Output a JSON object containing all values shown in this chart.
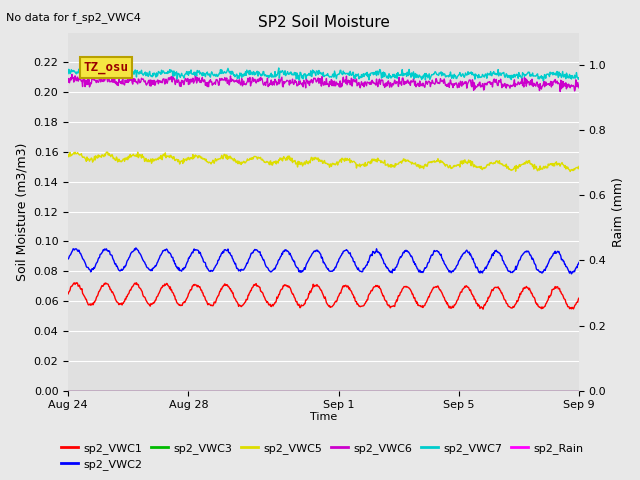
{
  "title": "SP2 Soil Moisture",
  "subtitle": "No data for f_sp2_VWC4",
  "xlabel": "Time",
  "ylabel_left": "Soil Moisture (m3/m3)",
  "ylabel_right": "Raim (mm)",
  "tz_label": "TZ_osu",
  "ylim_left": [
    0.0,
    0.24
  ],
  "ylim_right": [
    0.0,
    1.1
  ],
  "yticks_left": [
    0.0,
    0.02,
    0.04,
    0.06,
    0.08,
    0.1,
    0.12,
    0.14,
    0.16,
    0.18,
    0.2,
    0.22
  ],
  "yticks_right": [
    0.0,
    0.2,
    0.4,
    0.6,
    0.8,
    1.0
  ],
  "xtick_labels": [
    "Aug 24",
    "Aug 28",
    "Sep 1",
    "Sep 5",
    "Sep 9"
  ],
  "xtick_positions": [
    0,
    4,
    9,
    13,
    17
  ],
  "series": {
    "sp2_VWC1": {
      "color": "#ff0000",
      "base": 0.065,
      "amplitude": 0.007,
      "period": 1.0,
      "trend": -0.003,
      "noise": 0.0005
    },
    "sp2_VWC2": {
      "color": "#0000ff",
      "base": 0.088,
      "amplitude": 0.007,
      "period": 1.0,
      "trend": -0.002,
      "noise": 0.0005
    },
    "sp2_VWC3": {
      "color": "#00bb00",
      "base": 0.0,
      "amplitude": 0.0,
      "period": 1.0,
      "trend": 0.0,
      "noise": 0.0
    },
    "sp2_VWC5": {
      "color": "#dddd00",
      "base": 0.157,
      "amplitude": 0.002,
      "period": 1.0,
      "trend": -0.007,
      "noise": 0.0008
    },
    "sp2_VWC6": {
      "color": "#cc00cc",
      "base": 0.208,
      "amplitude": 0.001,
      "period": 1.0,
      "trend": -0.003,
      "noise": 0.0015
    },
    "sp2_VWC7": {
      "color": "#00cccc",
      "base": 0.213,
      "amplitude": 0.001,
      "period": 1.0,
      "trend": -0.002,
      "noise": 0.0012
    },
    "sp2_Rain": {
      "color": "#ff00ff",
      "base": 0.0,
      "amplitude": 0.0,
      "period": 1.0,
      "trend": 0.0,
      "noise": 0.0
    }
  },
  "background_color": "#e8e8e8",
  "plot_bg_color": "#e0e0e0",
  "grid_color": "#ffffff",
  "linewidth": 1.0,
  "n_days": 17
}
